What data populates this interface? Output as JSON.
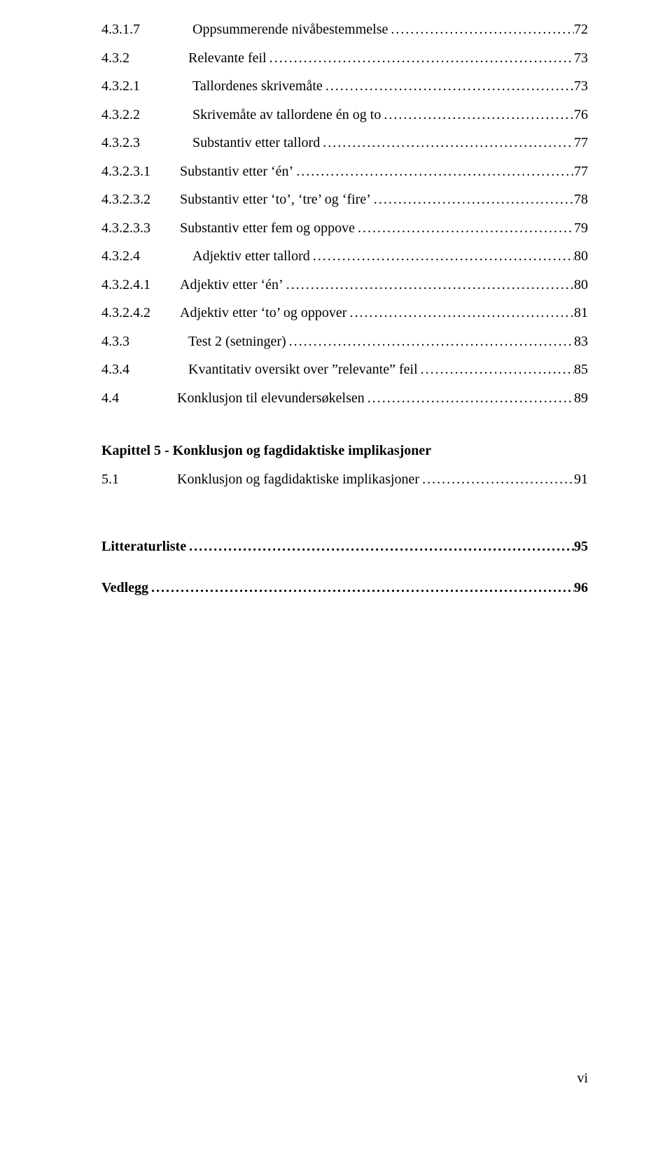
{
  "colors": {
    "background": "#ffffff",
    "text": "#000000"
  },
  "typography": {
    "font_family": "Times New Roman",
    "body_fontsize_pt": 12,
    "line_spacing": 1.9
  },
  "toc": {
    "entries": [
      {
        "num": "4.3.1.7",
        "label": "Oppsummerende nivåbestemmelse",
        "page": "72",
        "level": 3,
        "num_w": "c",
        "label_pad": "1"
      },
      {
        "num": "4.3.2",
        "label": "Relevante feil",
        "page": "73",
        "level": 2,
        "num_w": "b",
        "label_pad": "2"
      },
      {
        "num": "4.3.2.1",
        "label": "Tallordenes skrivemåte",
        "page": "73",
        "level": 3,
        "num_w": "c",
        "label_pad": "1"
      },
      {
        "num": "4.3.2.2",
        "label": "Skrivemåte av tallordene én og to",
        "page": "76",
        "level": 3,
        "num_w": "c",
        "label_pad": "1"
      },
      {
        "num": "4.3.2.3",
        "label": "Substantiv etter tallord",
        "page": "77",
        "level": 3,
        "num_w": "c",
        "label_pad": "1"
      },
      {
        "num": "4.3.2.3.1",
        "label": "Substantiv etter 'én'",
        "page": "77",
        "level": 4,
        "num_w": "c",
        "label_pad": "3"
      },
      {
        "num": "4.3.2.3.2",
        "label": "Substantiv etter 'to', 'tre' og 'fire'",
        "page": "78",
        "level": 4,
        "num_w": "c",
        "label_pad": "3"
      },
      {
        "num": "4.3.2.3.3",
        "label": "Substantiv etter fem og oppove",
        "page": "79",
        "level": 4,
        "num_w": "c",
        "label_pad": "3"
      },
      {
        "num": "4.3.2.4",
        "label": "Adjektiv etter tallord",
        "page": "80",
        "level": 3,
        "num_w": "c",
        "label_pad": "1"
      },
      {
        "num": "4.3.2.4.1",
        "label": "Adjektiv etter 'én'",
        "page": "80",
        "level": 4,
        "num_w": "c",
        "label_pad": "3"
      },
      {
        "num": "4.3.2.4.2",
        "label": "Adjektiv etter 'to' og oppover",
        "page": "81",
        "level": 4,
        "num_w": "c",
        "label_pad": "3"
      },
      {
        "num": "4.3.3",
        "label": "Test 2 (setninger)",
        "page": "83",
        "level": 2,
        "num_w": "b",
        "label_pad": "2"
      },
      {
        "num": "4.3.4",
        "label": "Kvantitativ oversikt over \"relevante\" feil",
        "page": "85",
        "level": 2,
        "num_w": "b",
        "label_pad": "2"
      },
      {
        "num": "4.4",
        "label": "Konklusjon til elevundersøkelsen",
        "page": "89",
        "level": 1,
        "num_w": "a",
        "label_pad": "2"
      }
    ],
    "chapter": {
      "title": "Kapittel 5 - Konklusjon og fagdidaktiske implikasjoner"
    },
    "chapter_entries": [
      {
        "num": "5.1",
        "label": "Konklusjon og fagdidaktiske implikasjoner",
        "page": "91",
        "level": 1,
        "num_w": "a",
        "label_pad": "2"
      }
    ],
    "tail_entries": [
      {
        "num": "",
        "label": "Litteraturliste",
        "page": "95",
        "bold": true
      },
      {
        "num": "",
        "label": "Vedlegg",
        "page": "96",
        "bold": true
      }
    ]
  },
  "footer": {
    "page_number": "vi"
  }
}
